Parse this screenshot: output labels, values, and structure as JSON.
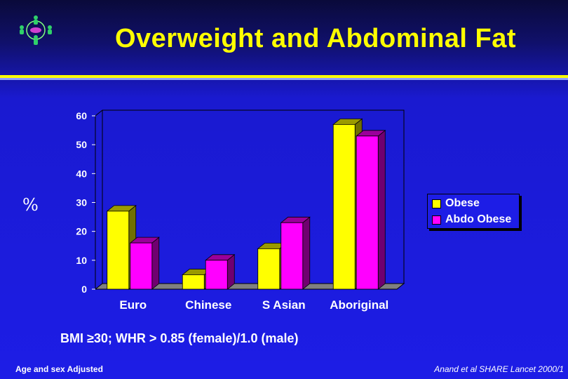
{
  "slide": {
    "title": "Overweight and Abdominal Fat",
    "y_unit_label": "%",
    "footnote": "BMI ≥30; WHR > 0.85 (female)/1.0 (male)",
    "footer_left": "Age and sex Adjusted",
    "footer_right": "Anand et al SHARE Lancet 2000/1"
  },
  "logo": {
    "icon": "people-circle-logo-icon"
  },
  "colors": {
    "background": "#1d1de6",
    "title": "#ffff00",
    "obese": "#ffff00",
    "abdo_obese": "#ff00ff"
  },
  "chart_data": {
    "type": "bar",
    "title": "",
    "xlabel": "",
    "ylabel": "%",
    "categories": [
      "Euro",
      "Chinese",
      "S Asian",
      "Aboriginal"
    ],
    "series": [
      {
        "name": "Obese",
        "values": [
          27,
          5,
          14,
          57
        ]
      },
      {
        "name": "Abdo Obese",
        "values": [
          16,
          10,
          23,
          53
        ]
      }
    ],
    "yticks": [
      "0",
      "10",
      "20",
      "30",
      "40",
      "50",
      "60"
    ],
    "ylim": [
      0,
      60
    ],
    "grid": false,
    "legend": "right",
    "style": "3d"
  }
}
